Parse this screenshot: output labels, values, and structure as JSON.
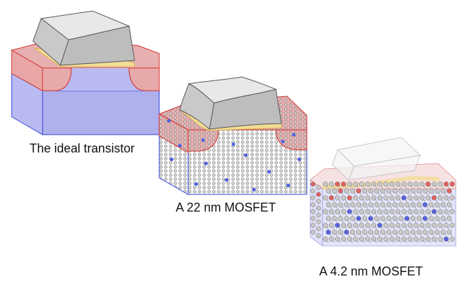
{
  "captions": {
    "ideal": "The ideal transistor",
    "nm22": "A 22 nm MOSFET",
    "nm42": "A 4.2 nm MOSFET"
  },
  "colors": {
    "substrate_fill": "#b7b9ef",
    "substrate_edge": "#2e3fd6",
    "doped_fill": "#e2a8a8",
    "doped_edge": "#d62d2d",
    "oxide": "#f2dc96",
    "gate_top": "#e6e6e6",
    "gate_front": "#bdbdbd",
    "gate_side": "#cfcfcf",
    "atom_grey": "#c8c8c8",
    "atom_blue": "#5563e0",
    "atom_red": "#e06060"
  }
}
